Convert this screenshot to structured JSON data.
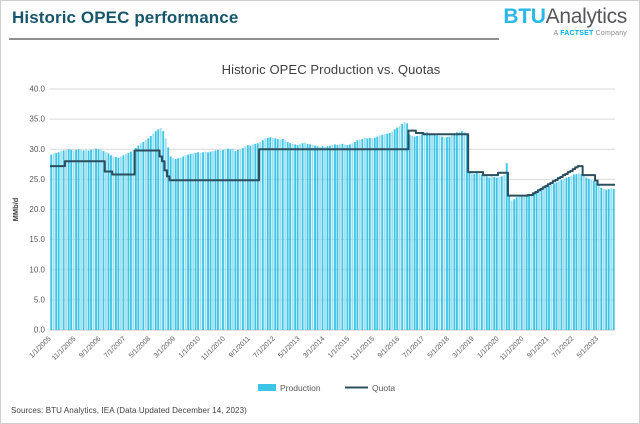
{
  "header": {
    "title": "Historic OPEC performance",
    "logo": {
      "btu": "BTU",
      "analytics": "Analytics",
      "tagline_a": "A ",
      "tagline_factset": "FACTSET",
      "tagline_company": " Company"
    }
  },
  "footer": {
    "sources": "Sources: BTU Analytics, IEA (Data Updated December 14, 2023)"
  },
  "colors": {
    "bar_main": "#3cc5e6",
    "bar_light": "#9fdff2",
    "quota_line": "#2b4f5e",
    "title_teal": "#17566b",
    "logo_cyan": "#29b9e7",
    "factset_cyan": "#00aeef",
    "axis_text": "#595959",
    "gridline": "#d9d9d9",
    "axis_line": "#bfbfbf"
  },
  "chart_data": {
    "type": "bar",
    "title": "Historic OPEC Production vs. Quotas",
    "xlabel": "",
    "ylabel": "MMb/d",
    "ylim": [
      0,
      40
    ],
    "ytick_step": 5,
    "yticks": [
      "0.0",
      "5.0",
      "10.0",
      "15.0",
      "20.0",
      "25.0",
      "30.0",
      "35.0",
      "40.0"
    ],
    "grid": "horizontal",
    "legend_position": "bottom",
    "x_frequency": "monthly",
    "x_range": [
      "1/1/2005",
      "11/1/2023"
    ],
    "x_tick_every": 10,
    "x_tick_labels": [
      "1/1/2005",
      "11/1/2005",
      "9/1/2006",
      "7/1/2007",
      "5/1/2008",
      "3/1/2009",
      "1/1/2010",
      "11/1/2010",
      "9/1/2011",
      "7/1/2012",
      "5/1/2013",
      "3/1/2014",
      "1/1/2015",
      "11/1/2015",
      "9/1/2016",
      "7/1/2017",
      "5/1/2018",
      "3/1/2019",
      "1/1/2020",
      "11/1/2020",
      "9/1/2021",
      "7/1/2022",
      "5/1/2023"
    ],
    "series": [
      {
        "name": "Production",
        "type": "bar",
        "color": "#3cc5e6",
        "color_alt": "#9fdff2",
        "values": [
          29.1,
          29.3,
          29.4,
          29.5,
          29.7,
          29.8,
          29.9,
          30.0,
          29.9,
          29.8,
          29.9,
          30.0,
          29.9,
          29.8,
          29.9,
          29.8,
          29.9,
          30.0,
          30.1,
          30.0,
          29.9,
          29.7,
          29.5,
          29.3,
          29.0,
          28.8,
          28.7,
          28.6,
          28.8,
          29.0,
          29.2,
          29.4,
          29.6,
          29.8,
          30.2,
          30.6,
          31.0,
          31.2,
          31.5,
          31.8,
          32.2,
          32.6,
          33.0,
          33.3,
          33.5,
          33.0,
          31.8,
          30.3,
          28.8,
          28.5,
          28.4,
          28.5,
          28.6,
          28.8,
          29.0,
          29.1,
          29.2,
          29.3,
          29.4,
          29.5,
          29.4,
          29.5,
          29.6,
          29.5,
          29.6,
          29.7,
          29.8,
          29.9,
          29.8,
          29.9,
          30.0,
          30.1,
          30.0,
          30.1,
          29.7,
          29.9,
          30.0,
          30.2,
          30.5,
          30.7,
          30.6,
          30.8,
          30.9,
          31.0,
          31.2,
          31.5,
          31.8,
          31.9,
          32.0,
          31.9,
          31.8,
          31.7,
          31.6,
          31.7,
          31.5,
          31.2,
          31.0,
          30.9,
          30.8,
          30.7,
          30.9,
          31.0,
          31.1,
          30.9,
          30.8,
          30.7,
          30.6,
          30.5,
          30.4,
          30.5,
          30.4,
          30.5,
          30.6,
          30.7,
          30.8,
          30.7,
          30.8,
          30.9,
          30.8,
          30.7,
          30.8,
          31.0,
          31.2,
          31.5,
          31.6,
          31.7,
          31.9,
          31.8,
          31.9,
          31.8,
          31.9,
          32.1,
          32.3,
          32.4,
          32.5,
          32.6,
          32.7,
          32.9,
          33.3,
          33.6,
          33.8,
          34.2,
          34.5,
          34.3,
          32.4,
          32.2,
          32.1,
          32.2,
          32.3,
          32.5,
          32.7,
          32.8,
          32.6,
          32.5,
          32.4,
          32.3,
          32.2,
          32.1,
          32.0,
          32.0,
          32.1,
          32.3,
          32.6,
          32.8,
          32.9,
          33.0,
          32.9,
          32.5,
          26.2,
          26.0,
          25.9,
          26.1,
          25.9,
          25.8,
          25.6,
          25.5,
          25.3,
          25.5,
          25.4,
          25.3,
          25.4,
          25.5,
          25.7,
          27.7,
          22.3,
          21.5,
          21.7,
          22.0,
          22.2,
          22.3,
          22.4,
          22.5,
          22.4,
          22.5,
          22.7,
          22.9,
          23.1,
          23.3,
          23.5,
          23.7,
          23.9,
          24.1,
          24.3,
          24.5,
          24.7,
          24.9,
          25.1,
          25.3,
          25.4,
          25.6,
          25.8,
          25.9,
          26.0,
          25.9,
          25.6,
          25.3,
          25.1,
          24.9,
          24.8,
          24.5,
          24.0,
          23.6,
          23.4,
          23.3,
          23.4,
          23.5,
          23.4
        ]
      },
      {
        "name": "Quota",
        "type": "line",
        "color": "#2b4f5e",
        "values": [
          27.2,
          27.2,
          27.2,
          27.2,
          27.2,
          27.2,
          28.0,
          28.0,
          28.0,
          28.0,
          28.0,
          28.0,
          28.0,
          28.0,
          28.0,
          28.0,
          28.0,
          28.0,
          28.0,
          28.0,
          28.0,
          28.0,
          26.3,
          26.3,
          26.3,
          25.8,
          25.8,
          25.8,
          25.8,
          25.8,
          25.8,
          25.8,
          25.8,
          25.8,
          29.8,
          29.8,
          29.8,
          29.8,
          29.8,
          29.8,
          29.8,
          29.8,
          29.8,
          29.8,
          28.8,
          28.0,
          26.5,
          25.5,
          24.845,
          24.845,
          24.845,
          24.845,
          24.845,
          24.845,
          24.845,
          24.845,
          24.845,
          24.845,
          24.845,
          24.845,
          24.845,
          24.845,
          24.845,
          24.845,
          24.845,
          24.845,
          24.845,
          24.845,
          24.845,
          24.845,
          24.845,
          24.845,
          24.845,
          24.845,
          24.845,
          24.845,
          24.845,
          24.845,
          24.845,
          24.845,
          24.845,
          24.845,
          24.845,
          24.845,
          30.0,
          30.0,
          30.0,
          30.0,
          30.0,
          30.0,
          30.0,
          30.0,
          30.0,
          30.0,
          30.0,
          30.0,
          30.0,
          30.0,
          30.0,
          30.0,
          30.0,
          30.0,
          30.0,
          30.0,
          30.0,
          30.0,
          30.0,
          30.0,
          30.0,
          30.0,
          30.0,
          30.0,
          30.0,
          30.0,
          30.0,
          30.0,
          30.0,
          30.0,
          30.0,
          30.0,
          30.0,
          30.0,
          30.0,
          30.0,
          30.0,
          30.0,
          30.0,
          30.0,
          30.0,
          30.0,
          30.0,
          30.0,
          30.0,
          30.0,
          30.0,
          30.0,
          30.0,
          30.0,
          30.0,
          30.0,
          30.0,
          30.0,
          30.0,
          30.0,
          33.1,
          33.1,
          33.1,
          32.7,
          32.7,
          32.7,
          32.5,
          32.5,
          32.5,
          32.5,
          32.5,
          32.5,
          32.5,
          32.5,
          32.5,
          32.5,
          32.5,
          32.5,
          32.5,
          32.5,
          32.5,
          32.5,
          32.5,
          32.5,
          26.2,
          26.2,
          26.2,
          26.2,
          26.2,
          26.2,
          25.7,
          25.7,
          25.7,
          25.7,
          25.7,
          25.7,
          26.1,
          26.1,
          26.1,
          26.1,
          22.3,
          22.3,
          22.3,
          22.3,
          22.3,
          22.3,
          22.3,
          22.3,
          22.4,
          22.4,
          22.7,
          22.9,
          23.2,
          23.4,
          23.7,
          23.9,
          24.2,
          24.4,
          24.7,
          24.9,
          25.2,
          25.4,
          25.7,
          25.9,
          26.2,
          26.4,
          26.7,
          27.0,
          27.2,
          27.2,
          25.7,
          25.7,
          25.7,
          25.7,
          25.7,
          24.8,
          24.1,
          24.1,
          24.1,
          24.1,
          24.1,
          24.1,
          24.1
        ]
      }
    ]
  }
}
